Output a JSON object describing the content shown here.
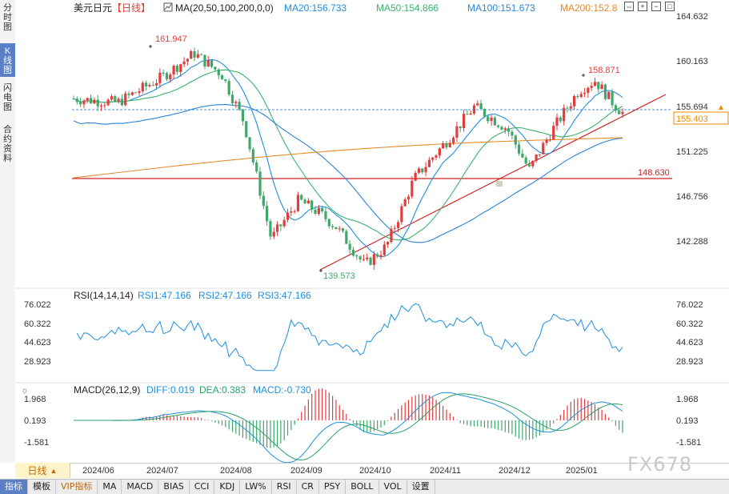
{
  "sidebar": {
    "tabs": [
      {
        "label": "分时图",
        "active": false
      },
      {
        "label": "K线图",
        "active": true
      },
      {
        "label": "闪电图",
        "active": false
      },
      {
        "label": "合约资料",
        "active": false
      }
    ]
  },
  "header": {
    "symbol": "美元日元",
    "period_tag": "【日线】",
    "ma_settings": "MA(20,50,100,200,0,0)",
    "ma20": "MA20:156.733",
    "ma50": "MA50:154.866",
    "ma100": "MA100:151.673",
    "ma200": "MA200:152.8"
  },
  "colors": {
    "up": "#e23c3c",
    "down": "#3fa76a",
    "ma20": "#1f8fe0",
    "ma50": "#3bb26a",
    "ma100": "#2c83d6",
    "ma200": "#e88a2a",
    "rsi": "#1f8fe0",
    "diff": "#1f8fe0",
    "dea": "#2aa06a",
    "level": "#d32121",
    "price_tag": "#f08a00"
  },
  "price_axis": {
    "ticks": [
      "164.632",
      "160.163",
      "155.694",
      "151.225",
      "146.756",
      "142.288"
    ]
  },
  "annotations": {
    "high": "161.947",
    "peak2": "158.871",
    "low": "139.573",
    "support": "148.630",
    "current_line": "155.694",
    "current_price": "155.403"
  },
  "rsi": {
    "title": "RSI(14,14,14)",
    "rsi1": "RSI1:47.166",
    "rsi2": "RSI2:47.166",
    "rsi3": "RSI3:47.166",
    "ticks": [
      "76.022",
      "60.322",
      "44.623",
      "28.923"
    ]
  },
  "macd": {
    "title": "MACD(26,12,9)",
    "diff": "DIFF:0.019",
    "dea": "DEA:0.383",
    "macd": "MACD:-0.730",
    "ticks": [
      "1.968",
      "0.193",
      "-1.581"
    ]
  },
  "dates": [
    "2024/06",
    "2024/07",
    "2024/08",
    "2024/09",
    "2024/10",
    "2024/11",
    "2024/12",
    "2025/01"
  ],
  "period_selector": {
    "label": "日线",
    "arrow": "▲"
  },
  "bottom_tabs": [
    "指标",
    "模板",
    "VIP指标",
    "MA",
    "MACD",
    "BIAS",
    "CCI",
    "KDJ",
    "LW%",
    "RSI",
    "CR",
    "PSY",
    "BOLL",
    "VOL",
    "设置"
  ],
  "watermark": "FX678",
  "icons": [
    "expand-icon",
    "zoom-in-icon",
    "zoom-out-icon",
    "fullscreen-icon"
  ],
  "chart_data": {
    "type": "candlestick",
    "waypoints_x": [
      "2024/06",
      "2024/07",
      "2024/08",
      "2024/09",
      "2024/10",
      "2024/11",
      "2024/12",
      "2025/01"
    ],
    "high": 161.947,
    "peak2": 158.871,
    "low": 139.573,
    "support_level": 148.63,
    "last_price": 155.403
  }
}
